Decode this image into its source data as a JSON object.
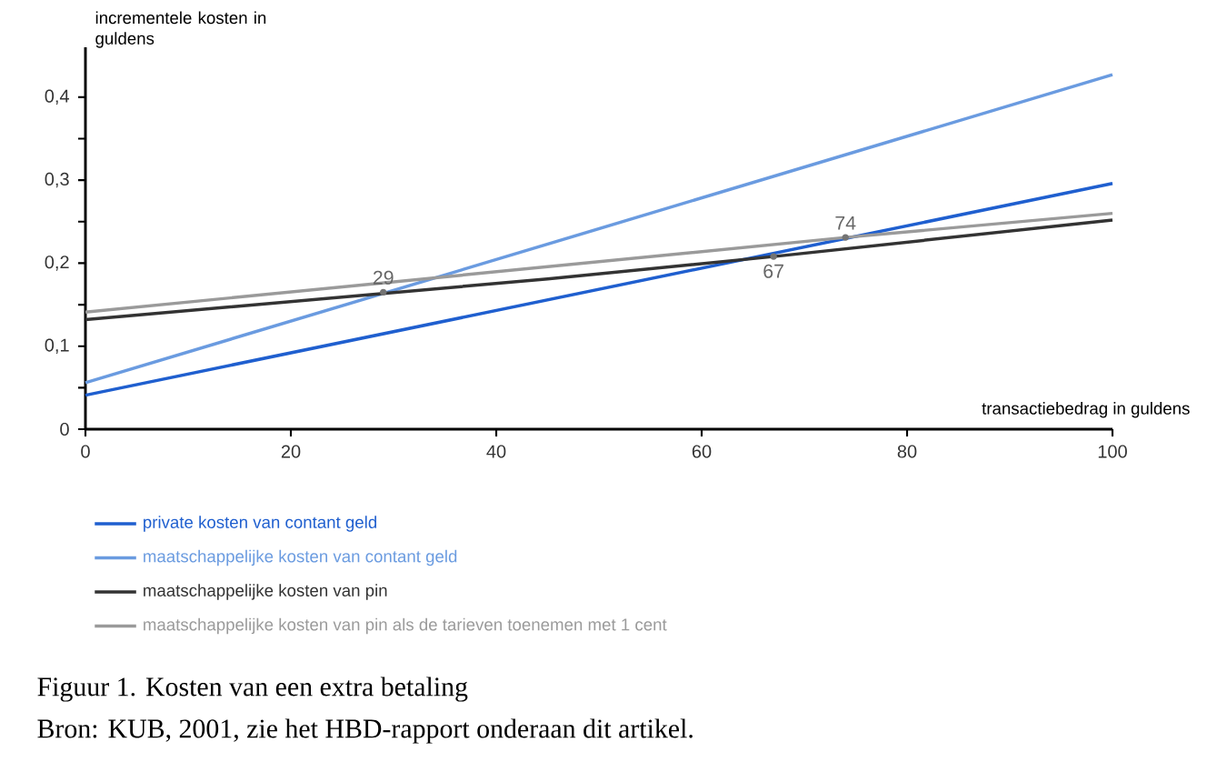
{
  "chart_data": {
    "type": "line",
    "xlabel": "transactiebedrag in guldens",
    "ylabel": "incrementele kosten in guldens",
    "xlim": [
      0,
      100
    ],
    "ylim": [
      0,
      0.46
    ],
    "xticks": [
      0,
      20,
      40,
      60,
      80,
      100
    ],
    "yticks": [
      0,
      {
        "value": 0.05,
        "label": null
      },
      {
        "value": 0.1,
        "label": "0,1"
      },
      {
        "value": 0.15,
        "label": null
      },
      {
        "value": 0.2,
        "label": "0,2"
      },
      {
        "value": 0.25,
        "label": null
      },
      {
        "value": 0.3,
        "label": "0,3"
      },
      {
        "value": 0.35,
        "label": null
      },
      {
        "value": 0.4,
        "label": "0,4"
      }
    ],
    "series": [
      {
        "name": "private kosten van contant geld",
        "color": "#1f5fcf",
        "x": [
          0,
          100
        ],
        "values": [
          0.041,
          0.296
        ]
      },
      {
        "name": "maatschappelijke kosten van contant geld",
        "color": "#6a9be0",
        "x": [
          0,
          100
        ],
        "values": [
          0.056,
          0.427
        ]
      },
      {
        "name": "maatschappelijke kosten van pin",
        "color": "#333333",
        "x": [
          0,
          45,
          67,
          100
        ],
        "values": [
          0.132,
          0.181,
          0.208,
          0.252
        ]
      },
      {
        "name": "maatschappelijke kosten van pin als de tarieven toenemen met 1 cent",
        "color": "#9a9a9a",
        "x": [
          0,
          74,
          100
        ],
        "values": [
          0.141,
          0.231,
          0.26
        ]
      }
    ],
    "annotations": [
      {
        "text": "29",
        "x": 29,
        "y": 0.165
      },
      {
        "text": "67",
        "x": 67,
        "y": 0.208
      },
      {
        "text": "74",
        "x": 74,
        "y": 0.231
      },
      "Figuur 1. Kosten van een extra betaling",
      "Bron: KUB, 2001, zie het HBD-rapport onderaan dit artikel."
    ],
    "legend": "bottom",
    "grid": false,
    "marker": "none",
    "line_style": "solid"
  }
}
